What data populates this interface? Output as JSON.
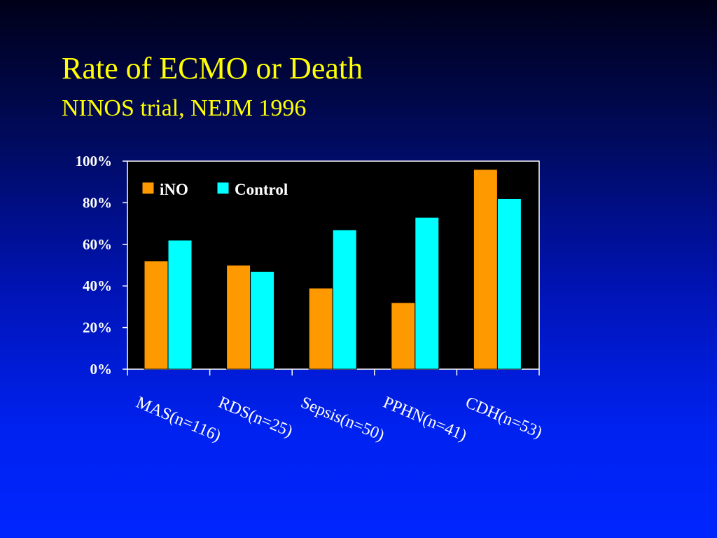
{
  "slide": {
    "title": "Rate of ECMO or Death",
    "subtitle": "NINOS trial, NEJM 1996"
  },
  "colors": {
    "title": "#ffff00",
    "plot_background": "#000000",
    "axis": "#ffffff",
    "text": "#ffffff",
    "ino": "#ff9900",
    "control": "#00ffff"
  },
  "chart_data": {
    "type": "bar",
    "title": "",
    "xlabel": "",
    "ylabel": "",
    "categories": [
      "MAS(n=116)",
      "RDS(n=25)",
      "Sepsis(n=50)",
      "PPHN(n=41)",
      "CDH(n=53)"
    ],
    "series": [
      {
        "name": "iNO",
        "values": [
          52,
          50,
          39,
          32,
          96
        ]
      },
      {
        "name": "Control",
        "values": [
          62,
          47,
          67,
          73,
          82
        ]
      }
    ],
    "ylim": [
      0,
      100
    ],
    "yticks": [
      0,
      20,
      40,
      60,
      80,
      100
    ],
    "ytick_labels": [
      "0%",
      "20%",
      "40%",
      "60%",
      "80%",
      "100%"
    ],
    "grid": false,
    "legend_position": "top-left"
  }
}
